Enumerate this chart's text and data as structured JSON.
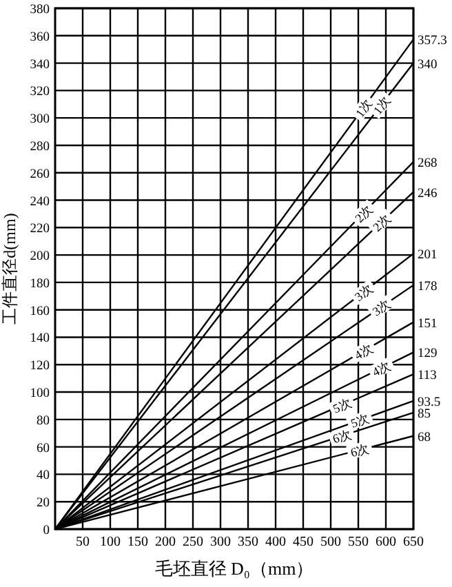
{
  "chart_data": {
    "type": "line",
    "xlabel": "毛坯直径 D₀（mm）",
    "ylabel": "工件直径d(mm)",
    "xlim": [
      0,
      650
    ],
    "ylim": [
      0,
      380
    ],
    "xticks": [
      50,
      100,
      150,
      200,
      250,
      300,
      350,
      400,
      450,
      500,
      550,
      600,
      650
    ],
    "yticks": [
      0,
      20,
      40,
      60,
      80,
      100,
      120,
      140,
      160,
      180,
      200,
      220,
      240,
      260,
      280,
      300,
      320,
      340,
      360,
      380
    ],
    "grid": true,
    "marker": "none",
    "line_style": "solid",
    "x": [
      0,
      650
    ],
    "series": [
      {
        "name": "1次",
        "color": "#000000",
        "values": [
          0,
          357.3
        ],
        "value_labels": [
          null,
          "357.3"
        ]
      },
      {
        "name": "1次",
        "color": "#000000",
        "values": [
          0,
          340
        ],
        "value_labels": [
          null,
          "340"
        ]
      },
      {
        "name": "2次",
        "color": "#000000",
        "values": [
          0,
          268
        ],
        "value_labels": [
          null,
          "268"
        ]
      },
      {
        "name": "2次",
        "color": "#000000",
        "values": [
          0,
          246
        ],
        "value_labels": [
          null,
          "246"
        ]
      },
      {
        "name": "3次",
        "color": "#000000",
        "values": [
          0,
          201
        ],
        "value_labels": [
          null,
          "201"
        ]
      },
      {
        "name": "3次",
        "color": "#000000",
        "values": [
          0,
          178
        ],
        "value_labels": [
          null,
          "178"
        ]
      },
      {
        "name": "4次",
        "color": "#000000",
        "values": [
          0,
          151
        ],
        "value_labels": [
          null,
          "151"
        ]
      },
      {
        "name": "4次",
        "color": "#000000",
        "values": [
          0,
          129
        ],
        "value_labels": [
          null,
          "129"
        ]
      },
      {
        "name": "5次",
        "color": "#000000",
        "values": [
          0,
          113
        ],
        "value_labels": [
          null,
          "113"
        ]
      },
      {
        "name": "5次",
        "color": "#000000",
        "values": [
          0,
          93.5
        ],
        "value_labels": [
          null,
          "93.5"
        ]
      },
      {
        "name": "6次",
        "color": "#000000",
        "values": [
          0,
          85
        ],
        "value_labels": [
          null,
          "85"
        ]
      },
      {
        "name": "6次",
        "color": "#000000",
        "values": [
          0,
          68
        ],
        "value_labels": [
          null,
          "68"
        ]
      }
    ]
  }
}
